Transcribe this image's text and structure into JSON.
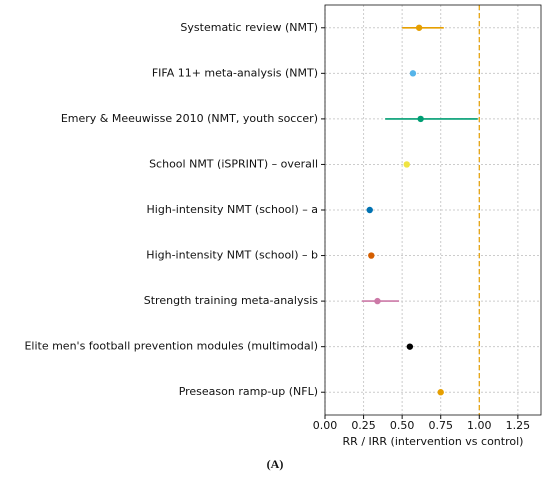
{
  "chart_data": {
    "type": "forest",
    "categories": [
      "Systematic review (NMT)",
      "FIFA 11+ meta-analysis (NMT)",
      "Emery & Meeuwisse 2010 (NMT, youth soccer)",
      "School NMT (iSPRINT) – overall",
      "High-intensity NMT (school) – a",
      "High-intensity NMT (school) – b",
      "Strength training meta-analysis",
      "Elite men's football prevention modules (multimodal)",
      "Preseason ramp-up (NFL)"
    ],
    "values": [
      0.61,
      0.57,
      0.62,
      0.53,
      0.29,
      0.3,
      0.34,
      0.55,
      0.75
    ],
    "lower": [
      0.5,
      null,
      0.39,
      null,
      null,
      null,
      0.24,
      null,
      null
    ],
    "upper": [
      0.77,
      null,
      0.99,
      null,
      null,
      null,
      0.48,
      null,
      null
    ],
    "colors": [
      "#E69F00",
      "#56B4E9",
      "#009E73",
      "#F0E442",
      "#0072B2",
      "#D55E00",
      "#CC79A7",
      "#000000",
      "#E69F00"
    ],
    "xlabel": "RR / IRR (intervention vs control)",
    "xlim": [
      0,
      1.4
    ],
    "xticks": [
      {
        "value": 0,
        "label": "0.00"
      },
      {
        "value": 0.25,
        "label": "0.25"
      },
      {
        "value": 0.5,
        "label": "0.50"
      },
      {
        "value": 0.75,
        "label": "0.75"
      },
      {
        "value": 1,
        "label": "1.00"
      },
      {
        "value": 1.25,
        "label": "1.25"
      }
    ],
    "ref_line": 1.0,
    "ref_color": "#E69F00",
    "grid": true,
    "caption": "(A)"
  }
}
